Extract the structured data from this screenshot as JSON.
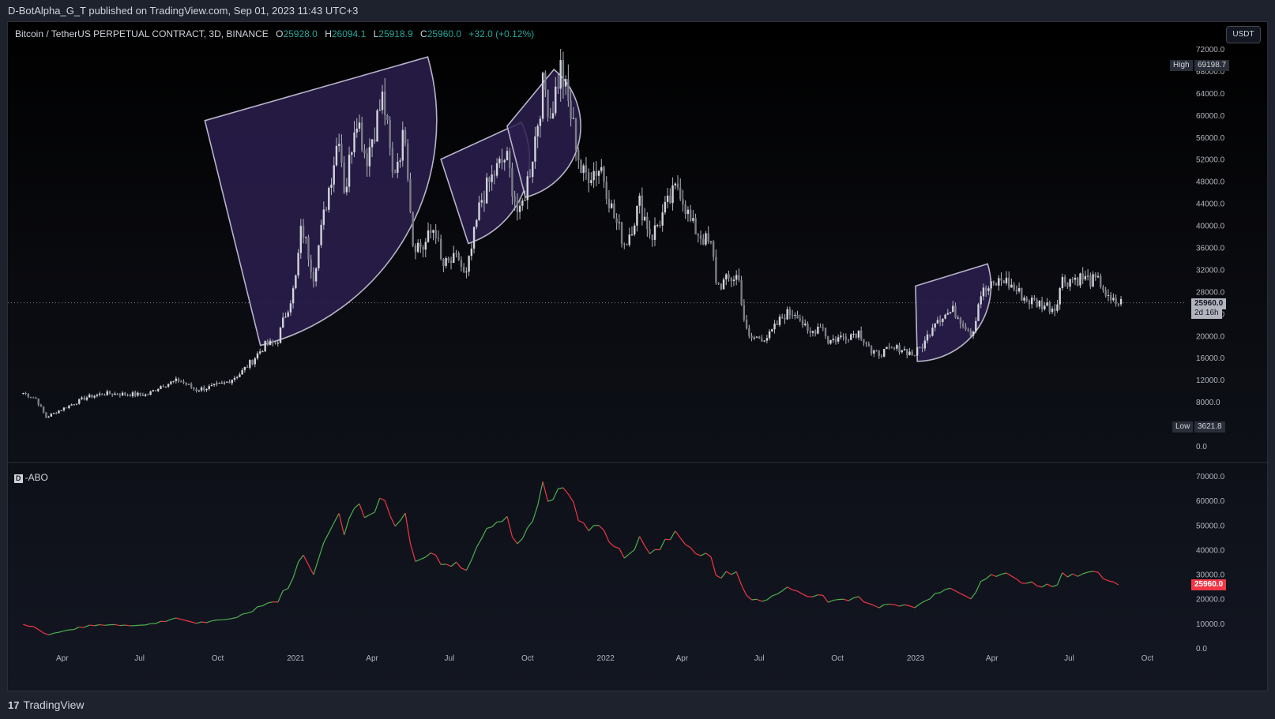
{
  "header": {
    "text": "D-BotAlpha_G_T published on TradingView.com, Sep 01, 2023 11:43 UTC+3"
  },
  "legend": {
    "symbol": "Bitcoin / TetherUS PERPETUAL CONTRACT, 3D, BINANCE",
    "o_label": "O",
    "o": "25928.0",
    "h_label": "H",
    "h": "26094.1",
    "l_label": "L",
    "l": "25918.9",
    "c_label": "C",
    "c": "25960.0",
    "change": "+32.0 (+0.12%)"
  },
  "currency_button": "USDT",
  "indicator_badge": "D",
  "indicator_name": "-ABO",
  "high_label": "High",
  "high_value": "69198.7",
  "low_label": "Low",
  "low_value": "3621.8",
  "last_price": "25960.0",
  "countdown": "2d 16h",
  "indicator_last": "25960.0",
  "footer": {
    "logo": "17",
    "brand": "TradingView"
  },
  "colors": {
    "up": "#26a69a",
    "down": "#ef5350",
    "indicator_up": "#4caf50",
    "indicator_down": "#f23645",
    "candle": "#b2b5be",
    "shape_fill": "#2c1f4d",
    "shape_stroke": "#b7b3c8"
  },
  "chart_data": [
    {
      "type": "candlestick",
      "price_axis": [
        "72000.0",
        "68000.0",
        "64000.0",
        "60000.0",
        "56000.0",
        "52000.0",
        "48000.0",
        "44000.0",
        "40000.0",
        "36000.0",
        "32000.0",
        "28000.0",
        "24000.0",
        "20000.0",
        "16000.0",
        "12000.0",
        "8000.0",
        "4000.0",
        "0.0"
      ],
      "ylim": [
        0,
        72000
      ],
      "x_ticks": [
        "Apr",
        "Jul",
        "Oct",
        "2021",
        "Apr",
        "Jul",
        "Oct",
        "2022",
        "Apr",
        "Jul",
        "Oct",
        "2023",
        "Apr",
        "Jul",
        "Oct"
      ],
      "close_series": [
        [
          "2020-02-15",
          9600
        ],
        [
          "2020-03-01",
          8600
        ],
        [
          "2020-03-13",
          5200
        ],
        [
          "2020-04-01",
          6700
        ],
        [
          "2020-04-29",
          8800
        ],
        [
          "2020-05-20",
          9500
        ],
        [
          "2020-06-15",
          9400
        ],
        [
          "2020-07-10",
          9250
        ],
        [
          "2020-07-27",
          11000
        ],
        [
          "2020-08-17",
          11900
        ],
        [
          "2020-09-05",
          10200
        ],
        [
          "2020-09-25",
          10700
        ],
        [
          "2020-10-10",
          11400
        ],
        [
          "2020-10-28",
          13200
        ],
        [
          "2020-11-10",
          15300
        ],
        [
          "2020-11-25",
          18200
        ],
        [
          "2020-12-10",
          18800
        ],
        [
          "2020-12-18",
          23000
        ],
        [
          "2020-12-31",
          29000
        ],
        [
          "2021-01-08",
          40000
        ],
        [
          "2021-01-22",
          31000
        ],
        [
          "2021-02-08",
          46000
        ],
        [
          "2021-02-21",
          57000
        ],
        [
          "2021-02-28",
          45500
        ],
        [
          "2021-03-13",
          61000
        ],
        [
          "2021-03-25",
          52000
        ],
        [
          "2021-04-14",
          63500
        ],
        [
          "2021-04-25",
          49000
        ],
        [
          "2021-05-10",
          57000
        ],
        [
          "2021-05-19",
          37000
        ],
        [
          "2021-05-31",
          36000
        ],
        [
          "2021-06-14",
          40000
        ],
        [
          "2021-06-22",
          32500
        ],
        [
          "2021-07-12",
          34000
        ],
        [
          "2021-07-20",
          30000
        ],
        [
          "2021-08-07",
          44500
        ],
        [
          "2021-08-23",
          49500
        ],
        [
          "2021-09-06",
          52500
        ],
        [
          "2021-09-21",
          41000
        ],
        [
          "2021-10-05",
          51000
        ],
        [
          "2021-10-20",
          66000
        ],
        [
          "2021-10-28",
          60000
        ],
        [
          "2021-11-09",
          68500
        ],
        [
          "2021-11-25",
          57000
        ],
        [
          "2021-12-04",
          49000
        ],
        [
          "2021-12-27",
          50500
        ],
        [
          "2022-01-10",
          41800
        ],
        [
          "2022-01-24",
          36500
        ],
        [
          "2022-02-10",
          44000
        ],
        [
          "2022-02-24",
          38000
        ],
        [
          "2022-03-28",
          47500
        ],
        [
          "2022-04-12",
          40000
        ],
        [
          "2022-05-06",
          36000
        ],
        [
          "2022-05-12",
          29000
        ],
        [
          "2022-06-06",
          31000
        ],
        [
          "2022-06-14",
          22000
        ],
        [
          "2022-06-18",
          19500
        ],
        [
          "2022-07-12",
          19800
        ],
        [
          "2022-07-30",
          23800
        ],
        [
          "2022-08-14",
          24400
        ],
        [
          "2022-08-28",
          20000
        ],
        [
          "2022-09-12",
          22300
        ],
        [
          "2022-09-20",
          19000
        ],
        [
          "2022-10-26",
          20700
        ],
        [
          "2022-11-08",
          18000
        ],
        [
          "2022-11-10",
          16500
        ],
        [
          "2022-12-14",
          17800
        ],
        [
          "2022-12-30",
          16500
        ],
        [
          "2023-01-12",
          18800
        ],
        [
          "2023-01-24",
          23000
        ],
        [
          "2023-02-15",
          24500
        ],
        [
          "2023-03-09",
          20300
        ],
        [
          "2023-03-18",
          27500
        ],
        [
          "2023-04-14",
          30300
        ],
        [
          "2023-05-12",
          26500
        ],
        [
          "2023-06-14",
          25000
        ],
        [
          "2023-06-22",
          30000
        ],
        [
          "2023-07-14",
          30500
        ],
        [
          "2023-08-08",
          29500
        ],
        [
          "2023-08-17",
          26000
        ],
        [
          "2023-09-01",
          25960
        ]
      ],
      "annotations": [
        {
          "shape": "sector",
          "points": [
            [
              "2020-09-16",
              59000
            ],
            [
              "2021-04-20",
              68500
            ],
            [
              "2020-12-02",
              11000
            ]
          ]
        },
        {
          "shape": "sector",
          "points": [
            [
              "2021-06-21",
              52000
            ],
            [
              "2021-09-07",
              57500
            ],
            [
              "2021-07-29",
              34000
            ]
          ]
        },
        {
          "shape": "sector",
          "points": [
            [
              "2021-09-07",
              58000
            ],
            [
              "2021-11-05",
              69000
            ],
            [
              "2021-09-27",
              46000
            ]
          ]
        },
        {
          "shape": "sector",
          "points": [
            [
              "2023-01-01",
              29000
            ],
            [
              "2023-03-31",
              33200
            ],
            [
              "2023-01-03",
              16000
            ]
          ]
        }
      ]
    },
    {
      "type": "line",
      "name": "-ABO",
      "y_axis": [
        "70000.0",
        "60000.0",
        "50000.0",
        "40000.0",
        "30000.0",
        "20000.0",
        "10000.0",
        "0.0"
      ],
      "ylim": [
        0,
        70000
      ],
      "series_ref": "close_series"
    }
  ]
}
